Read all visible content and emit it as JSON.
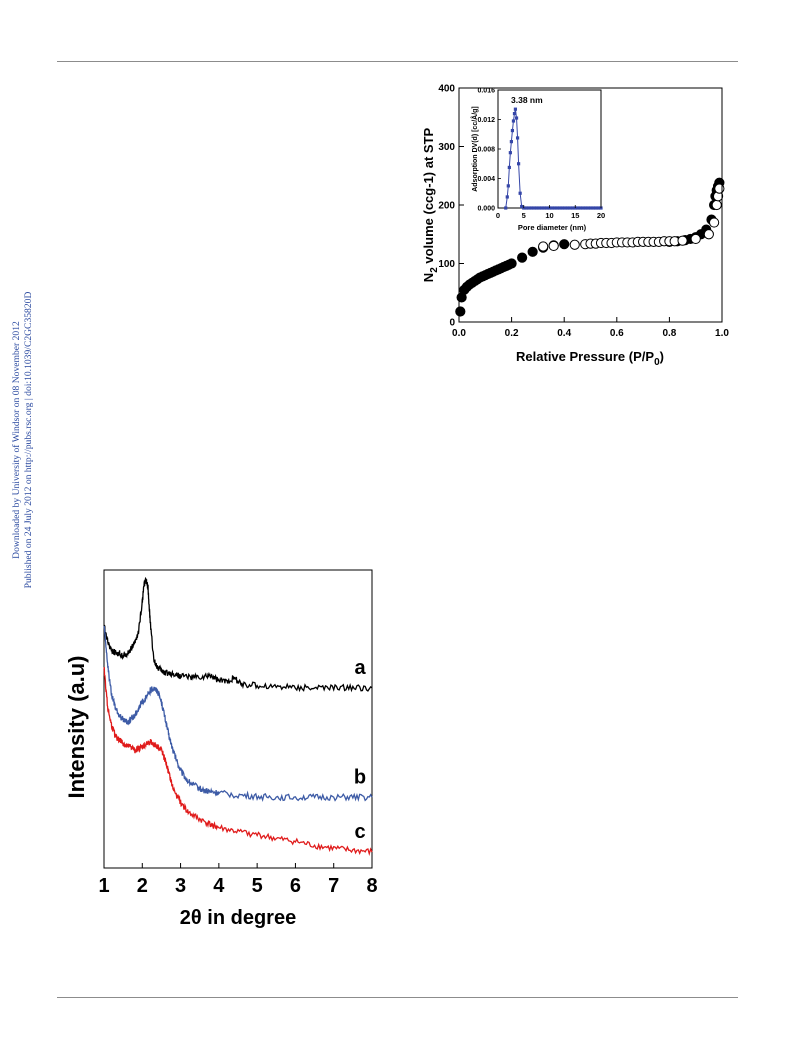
{
  "side_note": {
    "line1": "Downloaded by University of Windsor on 08 November 2012",
    "line2": "Published on 24 July 2012 on http://pubs.rsc.org | doi:10.1039/C2GC35820D"
  },
  "colors": {
    "series_a": "#000000",
    "series_b": "#3d5ba6",
    "series_c": "#e01b1b",
    "inset_points": "#3546a8",
    "side_note": "#2b4aa0"
  },
  "chart_data": [
    {
      "id": "isotherm",
      "type": "scatter",
      "title": "",
      "xlabel": "Relative Pressure (P/P",
      "xlabel_sub": "0",
      "xlabel_end": ")",
      "ylabel_prefix": "N",
      "ylabel_sub": "2",
      "ylabel_rest": " volume (ccg-1) at STP",
      "xlim": [
        0.0,
        1.0
      ],
      "ylim": [
        0,
        400
      ],
      "xticks": [
        "0.0",
        "0.2",
        "0.4",
        "0.6",
        "0.8",
        "1.0"
      ],
      "yticks": [
        "0",
        "100",
        "200",
        "300",
        "400"
      ],
      "series": [
        {
          "marker": "filled-circle",
          "x": [
            0.005,
            0.01,
            0.02,
            0.03,
            0.04,
            0.05,
            0.06,
            0.07,
            0.08,
            0.09,
            0.1,
            0.11,
            0.12,
            0.13,
            0.14,
            0.15,
            0.16,
            0.17,
            0.18,
            0.19,
            0.2,
            0.24,
            0.28,
            0.32,
            0.36,
            0.4,
            0.8,
            0.83,
            0.86,
            0.88,
            0.9,
            0.92,
            0.94,
            0.96,
            0.97,
            0.975,
            0.98,
            0.985,
            0.99
          ],
          "y": [
            18,
            42,
            55,
            60,
            64,
            67,
            70,
            73,
            76,
            78,
            80,
            82,
            84,
            86,
            88,
            90,
            92,
            94,
            96,
            98,
            100,
            110,
            120,
            127,
            131,
            133,
            137,
            138,
            140,
            142,
            145,
            150,
            158,
            175,
            200,
            215,
            225,
            232,
            238
          ]
        },
        {
          "marker": "open-circle",
          "x": [
            0.32,
            0.36,
            0.44,
            0.48,
            0.5,
            0.52,
            0.54,
            0.56,
            0.58,
            0.6,
            0.62,
            0.64,
            0.66,
            0.68,
            0.7,
            0.72,
            0.74,
            0.76,
            0.78,
            0.8,
            0.82,
            0.85,
            0.9,
            0.95,
            0.97,
            0.98,
            0.985,
            0.99
          ],
          "y": [
            129,
            130,
            132,
            133,
            134,
            134,
            135,
            135,
            135,
            136,
            136,
            136,
            136,
            137,
            137,
            137,
            137,
            137,
            138,
            138,
            138,
            139,
            142,
            150,
            170,
            200,
            215,
            228
          ]
        }
      ]
    },
    {
      "id": "inset",
      "type": "line",
      "xlabel": "Pore diameter (nm)",
      "ylabel": "Adsorption DV(d) [cc/Å/g]",
      "annotation": "3.38 nm",
      "xlim": [
        0,
        20
      ],
      "ylim": [
        0,
        0.016
      ],
      "xticks": [
        "0",
        "5",
        "10",
        "15",
        "20"
      ],
      "yticks": [
        "0.000",
        "0.004",
        "0.008",
        "0.012",
        "0.016"
      ],
      "series": [
        {
          "marker": "filled-square",
          "x": [
            1.5,
            1.8,
            2.0,
            2.2,
            2.4,
            2.6,
            2.8,
            3.0,
            3.2,
            3.38,
            3.6,
            3.8,
            4.0,
            4.3,
            4.6,
            5,
            5.5,
            6,
            6.5,
            7,
            7.5,
            8,
            8.5,
            9,
            9.5,
            10,
            10.5,
            11,
            11.5,
            12,
            12.5,
            13,
            13.5,
            14,
            14.5,
            15,
            15.5,
            16,
            16.5,
            17,
            17.5,
            18,
            18.5,
            19,
            19.5,
            20
          ],
          "y": [
            0.0,
            0.0015,
            0.003,
            0.0055,
            0.0075,
            0.009,
            0.0105,
            0.0118,
            0.0128,
            0.0134,
            0.0122,
            0.0095,
            0.006,
            0.002,
            0.0002,
            0,
            0,
            0,
            0,
            0,
            0,
            0,
            0,
            0,
            0,
            0,
            0,
            0,
            0,
            0,
            0,
            0,
            0,
            0,
            0,
            0,
            0,
            0,
            0,
            0,
            0,
            0,
            0,
            0,
            0,
            0
          ]
        }
      ]
    },
    {
      "id": "xrd",
      "type": "line",
      "title": "",
      "xlabel": "2θ in degree",
      "ylabel": "Intensity (a.u)",
      "xlim": [
        1,
        8
      ],
      "xticks": [
        "1",
        "2",
        "3",
        "4",
        "5",
        "6",
        "7",
        "8"
      ],
      "yticks_shown": false,
      "series": [
        {
          "name": "a",
          "x": [
            1.0,
            1.1,
            1.2,
            1.3,
            1.4,
            1.5,
            1.6,
            1.7,
            1.8,
            1.9,
            2.0,
            2.05,
            2.1,
            2.15,
            2.2,
            2.3,
            2.4,
            2.5,
            2.6,
            2.8,
            3.0,
            3.3,
            3.6,
            3.8,
            4.0,
            4.2,
            4.4,
            4.6,
            5.0,
            5.5,
            6.0,
            6.5,
            7.0,
            7.5,
            8.0
          ],
          "y": [
            4.5,
            4.25,
            4.15,
            4.1,
            4.1,
            4.05,
            4.1,
            4.15,
            4.25,
            4.4,
            4.85,
            5.1,
            5.15,
            5.05,
            4.6,
            4.0,
            3.9,
            3.85,
            3.82,
            3.8,
            3.78,
            3.75,
            3.75,
            3.78,
            3.7,
            3.7,
            3.74,
            3.65,
            3.63,
            3.62,
            3.61,
            3.6,
            3.6,
            3.6,
            3.6
          ]
        },
        {
          "name": "b",
          "x": [
            1.0,
            1.1,
            1.2,
            1.3,
            1.4,
            1.5,
            1.6,
            1.7,
            1.8,
            1.9,
            2.0,
            2.1,
            2.2,
            2.3,
            2.4,
            2.5,
            2.6,
            2.7,
            2.8,
            2.9,
            3.0,
            3.2,
            3.4,
            3.6,
            3.8,
            4.0,
            4.5,
            5.0,
            5.5,
            6.0,
            6.5,
            7.0,
            7.5,
            8.0
          ],
          "y": [
            4.5,
            3.9,
            3.5,
            3.3,
            3.2,
            3.15,
            3.1,
            3.15,
            3.2,
            3.3,
            3.4,
            3.45,
            3.55,
            3.6,
            3.55,
            3.4,
            3.15,
            2.9,
            2.7,
            2.55,
            2.4,
            2.25,
            2.18,
            2.12,
            2.1,
            2.08,
            2.05,
            2.03,
            2.02,
            2.02,
            2.02,
            2.02,
            2.02,
            2.02
          ]
        },
        {
          "name": "c",
          "x": [
            1.0,
            1.1,
            1.2,
            1.3,
            1.4,
            1.5,
            1.6,
            1.7,
            1.8,
            1.9,
            2.0,
            2.1,
            2.2,
            2.3,
            2.4,
            2.5,
            2.6,
            2.7,
            2.8,
            3.0,
            3.2,
            3.5,
            3.8,
            4.0,
            4.5,
            5.0,
            5.5,
            6.0,
            6.5,
            7.0,
            7.5,
            8.0
          ],
          "y": [
            3.9,
            3.3,
            3.05,
            2.9,
            2.85,
            2.8,
            2.75,
            2.75,
            2.7,
            2.72,
            2.75,
            2.78,
            2.82,
            2.78,
            2.75,
            2.7,
            2.55,
            2.35,
            2.15,
            1.95,
            1.8,
            1.7,
            1.62,
            1.58,
            1.52,
            1.48,
            1.42,
            1.38,
            1.32,
            1.28,
            1.25,
            1.23
          ]
        }
      ]
    }
  ]
}
